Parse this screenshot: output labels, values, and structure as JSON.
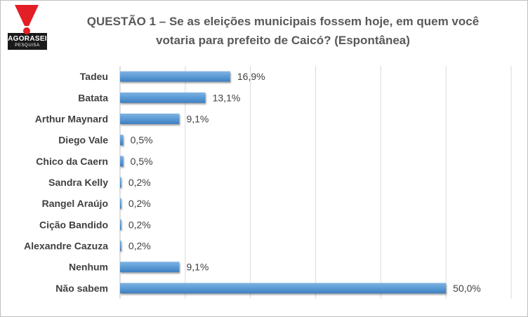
{
  "logo": {
    "brand": "AGORASEI",
    "sub": "PESQUISA",
    "mark": "exclamation-mark"
  },
  "chart_data": {
    "type": "bar",
    "orientation": "horizontal",
    "title": "QUESTÃO 1 – Se as eleições municipais fossem hoje, em quem você votaria para prefeito de Caicó? (Espontânea)",
    "title_lines": [
      "QUESTÃO 1 – Se as eleições municipais fossem hoje, em quem você",
      "votaria para prefeito de Caicó? (Espontânea)"
    ],
    "categories": [
      "Tadeu",
      "Batata",
      "Arthur Maynard",
      "Diego Vale",
      "Chico da Caern",
      "Sandra Kelly",
      "Rangel Araújo",
      "Cição Bandido",
      "Alexandre Cazuza",
      "Nenhum",
      "Não sabem"
    ],
    "values": [
      16.9,
      13.1,
      9.1,
      0.5,
      0.5,
      0.2,
      0.2,
      0.2,
      0.2,
      9.1,
      50.0
    ],
    "value_labels": [
      "16,9%",
      "13,1%",
      "9,1%",
      "0,5%",
      "0,5%",
      "0,2%",
      "0,2%",
      "0,2%",
      "0,2%",
      "9,1%",
      "50,0%"
    ],
    "xlabel": "",
    "ylabel": "",
    "xlim": [
      0,
      60
    ],
    "grid": true,
    "legend": "none",
    "bar_color": "#5b9bd5",
    "bar_color_dark": "#3f7fc0"
  }
}
